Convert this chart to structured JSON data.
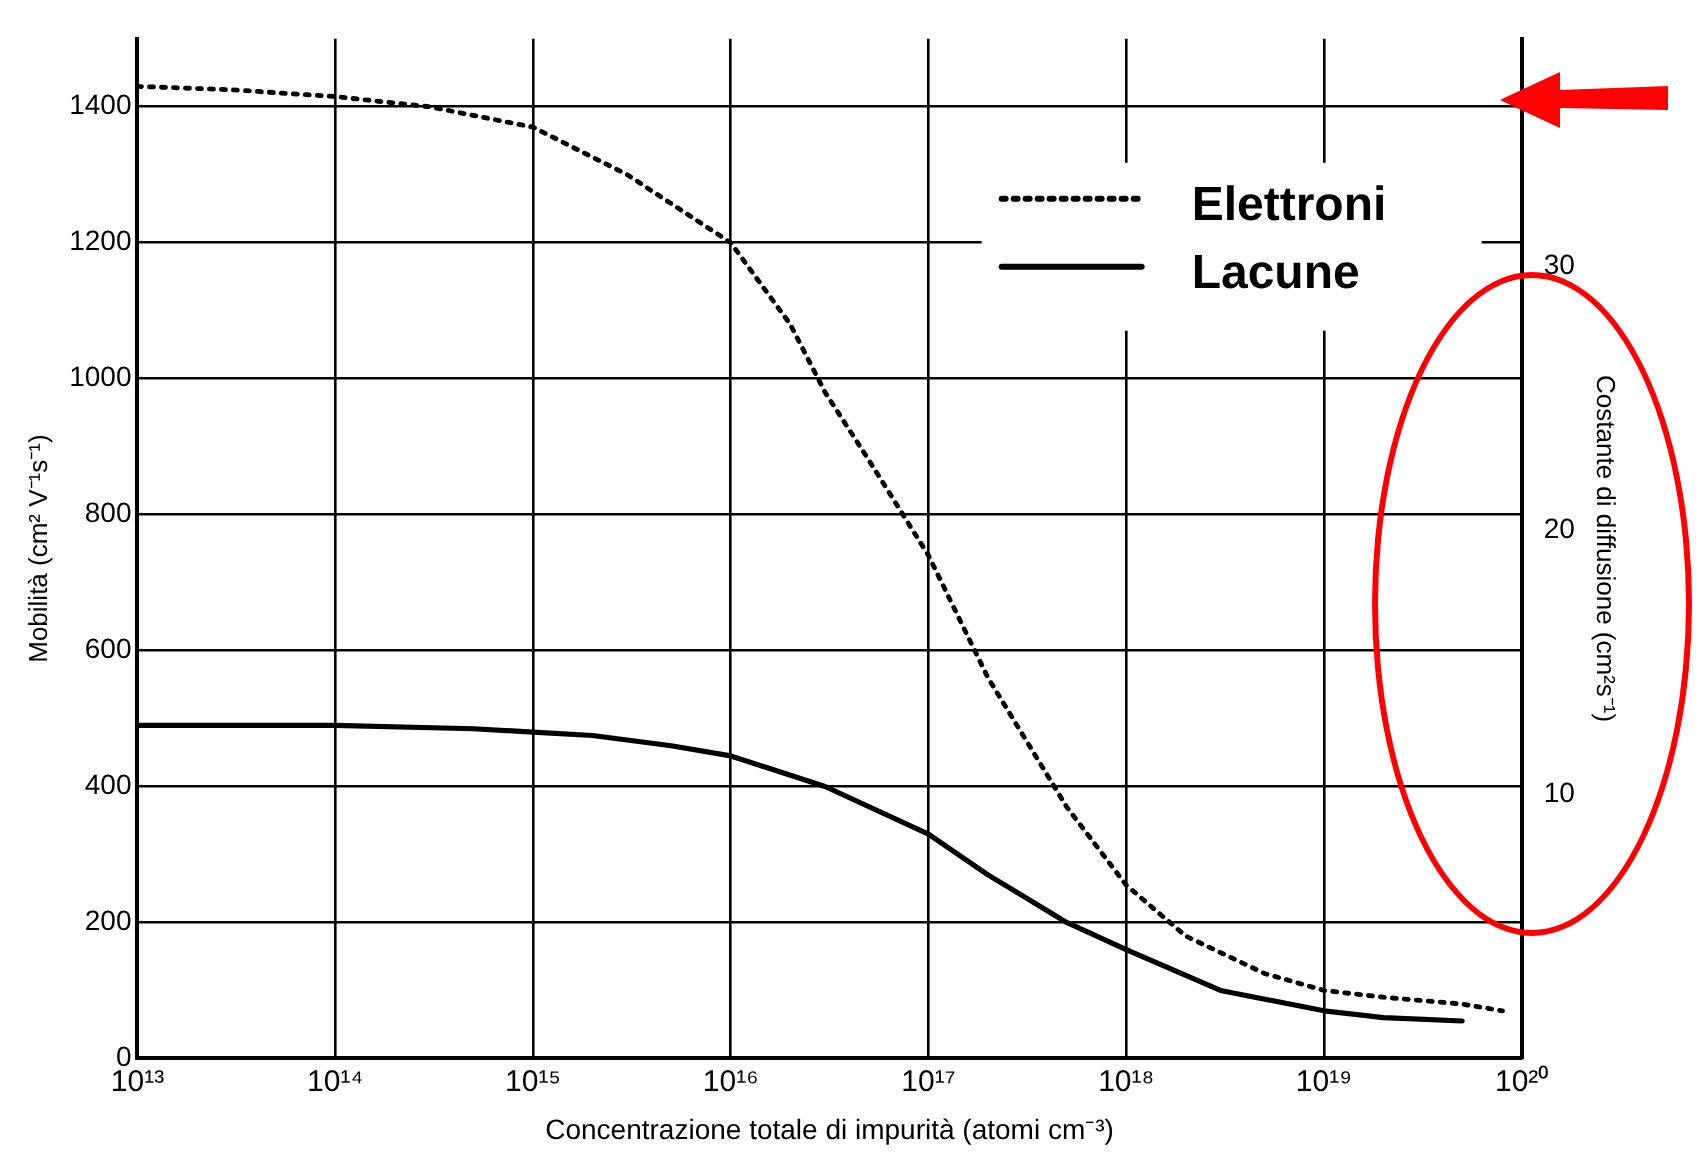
{
  "chart_data": {
    "type": "line",
    "xlabel": "Concentrazione totale di impurità (atomi cm⁻³)",
    "ylabel": "Mobilità (cm² V⁻¹s⁻¹)",
    "y2label": "Costante di diffusione (cm²s⁻¹)",
    "log": "x",
    "xlim": [
      10000000000000.0,
      1e+20
    ],
    "xticks": [
      {
        "value": 10000000000000.0,
        "label": "10¹³"
      },
      {
        "value": 100000000000000.0,
        "label": "10¹⁴"
      },
      {
        "value": 1000000000000000.0,
        "label": "10¹⁵"
      },
      {
        "value": 1e+16,
        "label": "10¹⁶"
      },
      {
        "value": 1e+17,
        "label": "10¹⁷"
      },
      {
        "value": 1e+18,
        "label": "10¹⁸"
      },
      {
        "value": 1e+19,
        "label": "10¹⁹"
      },
      {
        "value": 1e+20,
        "label": "10²⁰"
      }
    ],
    "ylim": [
      0,
      1500
    ],
    "yticks": [
      0,
      200,
      400,
      600,
      800,
      1000,
      1200,
      1400
    ],
    "y2lim": [
      0,
      38.6
    ],
    "y2ticks": [
      10,
      20,
      30
    ],
    "grid": true,
    "legend": "top right",
    "marker": "none",
    "series": [
      {
        "name": "Elettroni",
        "color": "#000000",
        "line_style": "dotted",
        "x": [
          10000000000000.0,
          30000000000000.0,
          100000000000000.0,
          300000000000000.0,
          1000000000000000.0,
          3000000000000000.0,
          1e+16,
          2e+16,
          3e+16,
          5e+16,
          1e+17,
          2e+17,
          5e+17,
          1e+18,
          2e+18,
          5e+18,
          1e+19,
          2e+19,
          5e+19,
          8e+19
        ],
        "values": [
          1430,
          1425,
          1415,
          1400,
          1370,
          1300,
          1200,
          1080,
          980,
          880,
          740,
          560,
          370,
          255,
          180,
          125,
          100,
          90,
          80,
          70
        ]
      },
      {
        "name": "Lacune",
        "color": "#000000",
        "line_style": "solid",
        "x": [
          10000000000000.0,
          100000000000000.0,
          500000000000000.0,
          1000000000000000.0,
          2000000000000000.0,
          5000000000000000.0,
          1e+16,
          3e+16,
          1e+17,
          2e+17,
          5e+17,
          1e+18,
          3e+18,
          1e+19,
          2e+19,
          5e+19
        ],
        "values": [
          490,
          490,
          485,
          480,
          475,
          460,
          445,
          400,
          330,
          270,
          200,
          160,
          100,
          70,
          60,
          55
        ]
      }
    ]
  }
}
